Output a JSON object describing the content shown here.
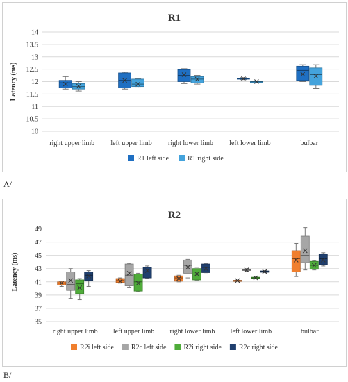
{
  "panel_labels": {
    "a": "A/",
    "b": "B/"
  },
  "chart_data": [
    {
      "type": "box",
      "title": "R1",
      "ylabel": "Latency (ms)",
      "xlabel": "",
      "ylim": [
        10,
        14
      ],
      "yticks": [
        10,
        10.5,
        11,
        11.5,
        12,
        12.5,
        13,
        13.5,
        14
      ],
      "ytick_labels": [
        "10",
        "10.5",
        "11",
        "11.5",
        "12",
        "12.5",
        "13",
        "13.5",
        "14"
      ],
      "grid": true,
      "legend_position": "bottom",
      "categories": [
        "right upper limb",
        "left upper limb",
        "right lower limb",
        "left lower limb",
        "bulbar"
      ],
      "series": [
        {
          "name": "R1 left side",
          "color": "#1f6fc2",
          "boxes": [
            {
              "min": 11.7,
              "q1": 11.75,
              "median": 11.95,
              "mean": 11.9,
              "q3": 12.05,
              "max": 12.2
            },
            {
              "min": 11.7,
              "q1": 11.75,
              "median": 12.05,
              "mean": 12.05,
              "q3": 12.35,
              "max": 12.38
            },
            {
              "min": 11.92,
              "q1": 12.0,
              "median": 12.25,
              "mean": 12.28,
              "q3": 12.48,
              "max": 12.52
            },
            {
              "min": 12.08,
              "q1": 12.1,
              "median": 12.12,
              "mean": 12.12,
              "q3": 12.14,
              "max": 12.16
            },
            {
              "min": 12.0,
              "q1": 12.05,
              "median": 12.45,
              "mean": 12.3,
              "q3": 12.62,
              "max": 12.68
            }
          ]
        },
        {
          "name": "R1 right side",
          "color": "#44a3dc",
          "boxes": [
            {
              "min": 11.62,
              "q1": 11.7,
              "median": 11.8,
              "mean": 11.82,
              "q3": 11.92,
              "max": 12.0
            },
            {
              "min": 11.75,
              "q1": 11.8,
              "median": 11.9,
              "mean": 11.9,
              "q3": 12.1,
              "max": 12.12
            },
            {
              "min": 11.9,
              "q1": 11.95,
              "median": 12.1,
              "mean": 12.1,
              "q3": 12.2,
              "max": 12.25
            },
            {
              "min": 11.98,
              "q1": 11.99,
              "median": 12.0,
              "mean": 12.0,
              "q3": 12.01,
              "max": 12.02
            },
            {
              "min": 11.72,
              "q1": 11.85,
              "median": 12.28,
              "mean": 12.22,
              "q3": 12.55,
              "max": 12.68
            }
          ]
        }
      ]
    },
    {
      "type": "box",
      "title": "R2",
      "ylabel": "Latency (ms)",
      "xlabel": "",
      "ylim": [
        35,
        50
      ],
      "yticks": [
        35,
        37,
        39,
        41,
        43,
        45,
        47,
        49
      ],
      "ytick_labels": [
        "35",
        "37",
        "39",
        "41",
        "43",
        "45",
        "47",
        "49"
      ],
      "grid": true,
      "legend_position": "bottom",
      "categories": [
        "right upper limb",
        "left upper limb",
        "right lower limb",
        "left lower limb",
        "bulbar"
      ],
      "series": [
        {
          "name": "R2i left side",
          "color": "#f07f2e",
          "boxes": [
            {
              "min": 40.3,
              "q1": 40.5,
              "median": 40.8,
              "mean": 40.8,
              "q3": 41.0,
              "max": 41.1
            },
            {
              "min": 40.8,
              "q1": 40.9,
              "median": 41.2,
              "mean": 41.1,
              "q3": 41.5,
              "max": 41.6
            },
            {
              "min": 41.0,
              "q1": 41.1,
              "median": 41.6,
              "mean": 41.5,
              "q3": 41.9,
              "max": 42.0
            },
            {
              "min": 41.15,
              "q1": 41.17,
              "median": 41.2,
              "mean": 41.2,
              "q3": 41.23,
              "max": 41.25
            },
            {
              "min": 41.8,
              "q1": 42.5,
              "median": 44.5,
              "mean": 44.3,
              "q3": 45.7,
              "max": 46.8
            }
          ]
        },
        {
          "name": "R2c left side",
          "color": "#a6a6a6",
          "boxes": [
            {
              "min": 38.5,
              "q1": 39.7,
              "median": 40.6,
              "mean": 41.2,
              "q3": 42.5,
              "max": 43.0
            },
            {
              "min": 40.2,
              "q1": 40.4,
              "median": 42.0,
              "mean": 42.3,
              "q3": 43.7,
              "max": 43.8
            },
            {
              "min": 41.6,
              "q1": 42.3,
              "median": 43.5,
              "mean": 43.2,
              "q3": 44.3,
              "max": 44.4
            },
            {
              "min": 42.6,
              "q1": 42.7,
              "median": 42.8,
              "mean": 42.8,
              "q3": 42.9,
              "max": 43.0
            },
            {
              "min": 42.8,
              "q1": 43.9,
              "median": 45.0,
              "mean": 45.7,
              "q3": 47.9,
              "max": 49.2
            }
          ]
        },
        {
          "name": "R2i right side",
          "color": "#4fac3a",
          "boxes": [
            {
              "min": 38.3,
              "q1": 39.2,
              "median": 40.7,
              "mean": 40.1,
              "q3": 41.3,
              "max": 41.5
            },
            {
              "min": 39.5,
              "q1": 39.6,
              "median": 41.0,
              "mean": 40.8,
              "q3": 42.2,
              "max": 42.3
            },
            {
              "min": 41.2,
              "q1": 41.3,
              "median": 42.5,
              "mean": 42.2,
              "q3": 43.0,
              "max": 43.2
            },
            {
              "min": 41.5,
              "q1": 41.55,
              "median": 41.6,
              "mean": 41.6,
              "q3": 41.7,
              "max": 41.75
            },
            {
              "min": 42.8,
              "q1": 42.9,
              "median": 43.5,
              "mean": 43.5,
              "q3": 44.1,
              "max": 44.2
            }
          ]
        },
        {
          "name": "R2c right side",
          "color": "#1f3f6e",
          "boxes": [
            {
              "min": 40.3,
              "q1": 41.2,
              "median": 42.0,
              "mean": 41.9,
              "q3": 42.5,
              "max": 42.7
            },
            {
              "min": 41.5,
              "q1": 41.6,
              "median": 42.5,
              "mean": 42.7,
              "q3": 43.2,
              "max": 43.4
            },
            {
              "min": 42.2,
              "q1": 42.4,
              "median": 43.2,
              "mean": 43.0,
              "q3": 43.7,
              "max": 43.8
            },
            {
              "min": 42.4,
              "q1": 42.45,
              "median": 42.55,
              "mean": 42.55,
              "q3": 42.65,
              "max": 42.7
            },
            {
              "min": 43.4,
              "q1": 43.6,
              "median": 44.5,
              "mean": 44.3,
              "q3": 45.2,
              "max": 45.4
            }
          ]
        }
      ]
    }
  ]
}
